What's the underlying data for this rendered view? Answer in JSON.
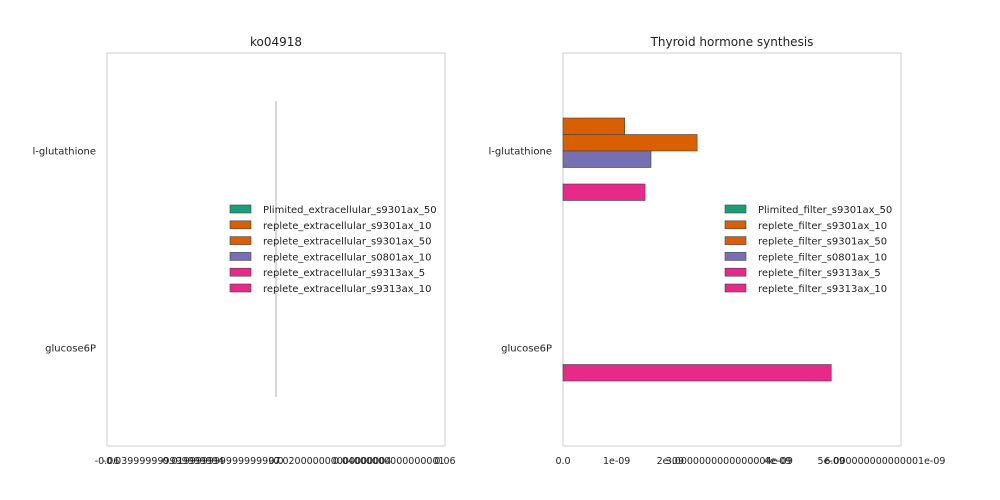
{
  "chart_data": [
    {
      "type": "bar",
      "orientation": "horizontal",
      "title": "ko04918",
      "xlabel": "",
      "ylabel": "",
      "categories": [
        "l-glutathione",
        "glucose6P"
      ],
      "xlim": [
        -0.06,
        0.06
      ],
      "x_ticks": [
        -0.06,
        -0.04,
        -0.02,
        0.0,
        0.02,
        0.04,
        0.06
      ],
      "x_tick_labels": [
        "-0.06",
        "-0.039999999999999994",
        "-0.019999999999999997",
        "0.0",
        "0.020000000000000004",
        "0.04000000000000001",
        "0.06"
      ],
      "grid": false,
      "legend_position": "right",
      "series": [
        {
          "name": "Plimited_extracellular_s9301ax_50",
          "color": "#1b9e77",
          "values": [
            0,
            0
          ]
        },
        {
          "name": "replete_extracellular_s9301ax_10",
          "color": "#d95f02",
          "values": [
            0,
            0
          ]
        },
        {
          "name": "replete_extracellular_s9301ax_50",
          "color": "#d95f02",
          "values": [
            0,
            0
          ]
        },
        {
          "name": "replete_extracellular_s0801ax_10",
          "color": "#7570b3",
          "values": [
            0,
            0
          ]
        },
        {
          "name": "replete_extracellular_s9313ax_5",
          "color": "#e7298a",
          "values": [
            0,
            0
          ]
        },
        {
          "name": "replete_extracellular_s9313ax_10",
          "color": "#e7298a",
          "values": [
            0,
            0
          ]
        }
      ]
    },
    {
      "type": "bar",
      "orientation": "horizontal",
      "title": "Thyroid hormone synthesis",
      "xlabel": "",
      "ylabel": "",
      "categories": [
        "l-glutathione",
        "glucose6P"
      ],
      "xlim": [
        0,
        6.3e-09
      ],
      "x_ticks": [
        0,
        1e-09,
        2e-09,
        4e-09,
        5e-09
      ],
      "x_tick_labels": [
        "0.0",
        "1e-09",
        "2e-09",
        "4e-09",
        "5e-09"
      ],
      "x_offset_labels": [
        {
          "text": "3.0000000000000004e-09",
          "at": 3.1e-09
        },
        {
          "text": "6.000000000000001e-09",
          "at": 6e-09
        }
      ],
      "grid": false,
      "legend_position": "right",
      "series": [
        {
          "name": "Plimited_filter_s9301ax_50",
          "color": "#1b9e77",
          "values": [
            0,
            0
          ]
        },
        {
          "name": "replete_filter_s9301ax_10",
          "color": "#d95f02",
          "values": [
            1.15e-09,
            0
          ]
        },
        {
          "name": "replete_filter_s9301ax_50",
          "color": "#d95f02",
          "values": [
            2.5e-09,
            0
          ]
        },
        {
          "name": "replete_filter_s0801ax_10",
          "color": "#7570b3",
          "values": [
            1.64e-09,
            0
          ]
        },
        {
          "name": "replete_filter_s9313ax_5",
          "color": "#e7298a",
          "values": [
            0,
            5e-09
          ]
        },
        {
          "name": "replete_filter_s9313ax_10",
          "color": "#e7298a",
          "values": [
            1.53e-09,
            0
          ]
        }
      ]
    }
  ]
}
